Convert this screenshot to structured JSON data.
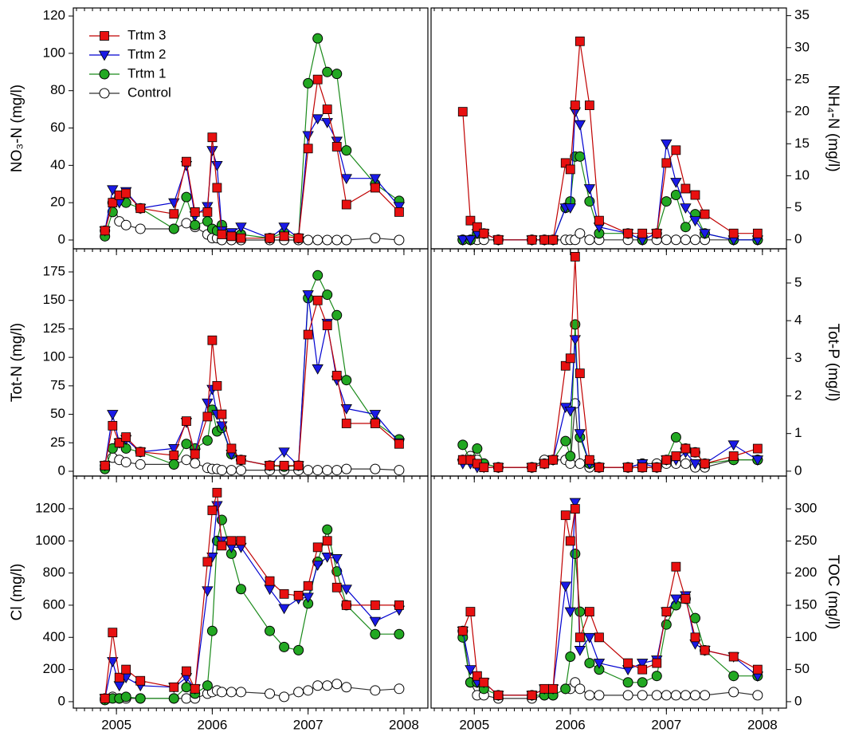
{
  "chart_data": [
    {
      "type": "line",
      "ylabel": "NO₃-N (mg/l)",
      "y_axis_side": "left",
      "legend": "upper left",
      "xlim": [
        2004.55,
        2008.25
      ],
      "xticks": [
        2005,
        2006,
        2007,
        2008
      ],
      "show_xtick_labels": false,
      "ylim": [
        -4.7,
        124.3
      ],
      "yticks": [
        0,
        20,
        40,
        60,
        80,
        100,
        120
      ],
      "x": [
        2004.88,
        2004.96,
        2005.03,
        2005.1,
        2005.25,
        2005.6,
        2005.73,
        2005.82,
        2005.95,
        2006.0,
        2006.05,
        2006.1,
        2006.2,
        2006.3,
        2006.6,
        2006.75,
        2006.9,
        2007.0,
        2007.1,
        2007.2,
        2007.3,
        2007.4,
        2007.7,
        2007.95
      ],
      "series": [
        {
          "name": "Trtm 3",
          "color": "#c00000",
          "marker": "square",
          "marker_fill": "#e81010",
          "values": [
            5,
            20,
            24,
            25,
            17,
            14,
            42,
            15,
            15,
            55,
            28,
            3,
            2,
            1,
            1,
            2,
            1,
            49,
            86,
            70,
            50,
            19,
            28,
            15
          ]
        },
        {
          "name": "Trtm 2",
          "color": "#0000d0",
          "marker": "triangle-down",
          "marker_fill": "#1a1ae6",
          "values": [
            5,
            27,
            20,
            26,
            17,
            20,
            40,
            13,
            18,
            48,
            40,
            5,
            4,
            7,
            1,
            7,
            1,
            56,
            65,
            63,
            53,
            33,
            33,
            18
          ]
        },
        {
          "name": "Trtm 1",
          "color": "#1a8a1a",
          "marker": "circle",
          "marker_fill": "#22a822",
          "values": [
            2,
            15,
            23,
            20,
            17,
            6,
            23,
            8,
            10,
            6,
            5,
            8,
            3,
            3,
            1,
            4,
            1,
            84,
            108,
            90,
            89,
            48,
            30,
            21
          ]
        },
        {
          "name": "Control",
          "color": "#333333",
          "marker": "circle",
          "marker_fill": "#ffffff",
          "values": [
            5,
            20,
            10,
            8,
            6,
            6,
            9,
            7,
            3,
            1,
            1,
            0,
            0,
            0,
            0,
            0,
            0,
            0,
            0,
            0,
            0,
            0,
            1,
            0
          ]
        }
      ]
    },
    {
      "type": "line",
      "ylabel": "NH₄-N (mg/l)",
      "y_axis_side": "right",
      "xlim": [
        2004.55,
        2008.25
      ],
      "xticks": [
        2005,
        2006,
        2007,
        2008
      ],
      "show_xtick_labels": false,
      "ylim": [
        -1.4,
        36.2
      ],
      "yticks": [
        0,
        5,
        10,
        15,
        20,
        25,
        30,
        35
      ],
      "x": [
        2004.88,
        2004.96,
        2005.03,
        2005.1,
        2005.25,
        2005.6,
        2005.73,
        2005.82,
        2005.95,
        2006.0,
        2006.05,
        2006.1,
        2006.2,
        2006.3,
        2006.6,
        2006.75,
        2006.9,
        2007.0,
        2007.1,
        2007.2,
        2007.3,
        2007.4,
        2007.7,
        2007.95
      ],
      "series": [
        {
          "color": "#c00000",
          "marker": "square",
          "marker_fill": "#e81010",
          "values": [
            20,
            3,
            2,
            1,
            0,
            0,
            0,
            0,
            12,
            11,
            21,
            31,
            21,
            3,
            1,
            1,
            1,
            12,
            14,
            8,
            7,
            4,
            1,
            1
          ]
        },
        {
          "color": "#0000d0",
          "marker": "triangle-down",
          "marker_fill": "#1a1ae6",
          "values": [
            0,
            0,
            1,
            1,
            0,
            0,
            0,
            0,
            5,
            5,
            20,
            18,
            8,
            2,
            1,
            0,
            1,
            15,
            9,
            5,
            3,
            1,
            0,
            0
          ]
        },
        {
          "color": "#1a8a1a",
          "marker": "circle",
          "marker_fill": "#22a822",
          "values": [
            0,
            0,
            1,
            1,
            0,
            0,
            0,
            0,
            5,
            6,
            13,
            13,
            6,
            1,
            1,
            0,
            1,
            6,
            7,
            2,
            4,
            1,
            0,
            0
          ]
        },
        {
          "color": "#333333",
          "marker": "circle",
          "marker_fill": "#ffffff",
          "values": [
            0,
            0,
            0,
            0,
            0,
            0,
            0,
            0,
            0,
            0,
            0,
            1,
            0,
            0,
            0,
            0,
            0,
            0,
            0,
            0,
            0,
            0,
            0,
            0
          ]
        }
      ]
    },
    {
      "type": "line",
      "ylabel": "Tot-N (mg/l)",
      "y_axis_side": "left",
      "xlim": [
        2004.55,
        2008.25
      ],
      "xticks": [
        2005,
        2006,
        2007,
        2008
      ],
      "show_xtick_labels": false,
      "ylim": [
        -4.2,
        195.3
      ],
      "yticks": [
        0,
        25,
        50,
        75,
        100,
        125,
        150,
        175
      ],
      "x": [
        2004.88,
        2004.96,
        2005.03,
        2005.1,
        2005.25,
        2005.6,
        2005.73,
        2005.82,
        2005.95,
        2006.0,
        2006.05,
        2006.1,
        2006.2,
        2006.3,
        2006.6,
        2006.75,
        2006.9,
        2007.0,
        2007.1,
        2007.2,
        2007.3,
        2007.4,
        2007.7,
        2007.95
      ],
      "series": [
        {
          "color": "#c00000",
          "marker": "square",
          "marker_fill": "#e81010",
          "values": [
            5,
            40,
            25,
            30,
            17,
            14,
            44,
            15,
            48,
            115,
            75,
            50,
            20,
            10,
            5,
            5,
            5,
            120,
            150,
            128,
            84,
            42,
            42,
            24
          ]
        },
        {
          "color": "#0000d0",
          "marker": "triangle-down",
          "marker_fill": "#1a1ae6",
          "values": [
            5,
            50,
            25,
            28,
            17,
            20,
            43,
            16,
            60,
            72,
            50,
            40,
            15,
            10,
            5,
            17,
            5,
            155,
            90,
            130,
            80,
            55,
            50,
            25
          ]
        },
        {
          "color": "#1a8a1a",
          "marker": "circle",
          "marker_fill": "#22a822",
          "values": [
            2,
            20,
            25,
            20,
            17,
            6,
            24,
            20,
            27,
            54,
            35,
            38,
            15,
            10,
            5,
            4,
            5,
            152,
            172,
            155,
            137,
            80,
            43,
            28
          ]
        },
        {
          "color": "#333333",
          "marker": "circle",
          "marker_fill": "#ffffff",
          "values": [
            5,
            12,
            10,
            8,
            6,
            6,
            10,
            7,
            3,
            2,
            2,
            1,
            1,
            1,
            1,
            1,
            1,
            1,
            1,
            1,
            1,
            2,
            2,
            1
          ]
        }
      ]
    },
    {
      "type": "line",
      "ylabel": "Tot-P (mg/l)",
      "y_axis_side": "right",
      "xlim": [
        2004.55,
        2008.25
      ],
      "xticks": [
        2005,
        2006,
        2007,
        2008
      ],
      "show_xtick_labels": false,
      "ylim": [
        -0.13,
        5.91
      ],
      "yticks": [
        0,
        1,
        2,
        3,
        4,
        5
      ],
      "x": [
        2004.88,
        2004.96,
        2005.03,
        2005.1,
        2005.25,
        2005.6,
        2005.73,
        2005.82,
        2005.95,
        2006.0,
        2006.05,
        2006.1,
        2006.2,
        2006.3,
        2006.6,
        2006.75,
        2006.9,
        2007.0,
        2007.1,
        2007.2,
        2007.3,
        2007.4,
        2007.7,
        2007.95
      ],
      "series": [
        {
          "color": "#c00000",
          "marker": "square",
          "marker_fill": "#e81010",
          "values": [
            0.3,
            0.3,
            0.2,
            0.1,
            0.1,
            0.1,
            0.2,
            0.3,
            2.8,
            3.0,
            5.7,
            2.6,
            0.3,
            0.1,
            0.1,
            0.1,
            0.1,
            0.3,
            0.4,
            0.6,
            0.5,
            0.2,
            0.4,
            0.6
          ]
        },
        {
          "color": "#0000d0",
          "marker": "triangle-down",
          "marker_fill": "#1a1ae6",
          "values": [
            0.2,
            0.2,
            0.1,
            0.1,
            0.1,
            0.1,
            0.2,
            0.3,
            1.7,
            1.6,
            3.5,
            1.0,
            0.2,
            0.1,
            0.1,
            0.2,
            0.1,
            0.3,
            0.3,
            0.5,
            0.2,
            0.2,
            0.7,
            0.3
          ]
        },
        {
          "color": "#1a8a1a",
          "marker": "circle",
          "marker_fill": "#22a822",
          "values": [
            0.7,
            0.3,
            0.6,
            0.2,
            0.1,
            0.1,
            0.2,
            0.3,
            0.8,
            0.4,
            3.9,
            0.9,
            0.2,
            0.1,
            0.1,
            0.1,
            0.1,
            0.3,
            0.9,
            0.6,
            0.5,
            0.2,
            0.3,
            0.3
          ]
        },
        {
          "color": "#333333",
          "marker": "circle",
          "marker_fill": "#ffffff",
          "values": [
            0.3,
            0.4,
            0.3,
            0.2,
            0.1,
            0.1,
            0.3,
            0.3,
            0.3,
            0.2,
            1.8,
            0.2,
            0.1,
            0.1,
            0.1,
            0.2,
            0.2,
            0.2,
            0.2,
            0.2,
            0.1,
            0.1,
            0.3,
            0.3
          ]
        }
      ]
    },
    {
      "type": "line",
      "ylabel": "Cl (mg/l)",
      "y_axis_side": "left",
      "xlim": [
        2004.55,
        2008.25
      ],
      "xticks": [
        2005,
        2006,
        2007,
        2008
      ],
      "show_xtick_labels": true,
      "ylim": [
        -40,
        1403
      ],
      "yticks": [
        0,
        200,
        400,
        600,
        800,
        1000,
        1200
      ],
      "x": [
        2004.88,
        2004.96,
        2005.03,
        2005.1,
        2005.25,
        2005.6,
        2005.73,
        2005.82,
        2005.95,
        2006.0,
        2006.05,
        2006.1,
        2006.2,
        2006.3,
        2006.6,
        2006.75,
        2006.9,
        2007.0,
        2007.1,
        2007.2,
        2007.3,
        2007.4,
        2007.7,
        2007.95
      ],
      "series": [
        {
          "color": "#c00000",
          "marker": "square",
          "marker_fill": "#e81010",
          "values": [
            20,
            430,
            150,
            200,
            130,
            90,
            190,
            80,
            870,
            1190,
            1300,
            970,
            1000,
            1000,
            750,
            670,
            660,
            720,
            960,
            1000,
            710,
            600,
            600,
            600
          ]
        },
        {
          "color": "#0000d0",
          "marker": "triangle-down",
          "marker_fill": "#1a1ae6",
          "values": [
            20,
            250,
            100,
            150,
            100,
            90,
            150,
            80,
            690,
            900,
            1220,
            1000,
            960,
            960,
            700,
            580,
            640,
            650,
            850,
            900,
            890,
            700,
            500,
            570
          ]
        },
        {
          "color": "#1a8a1a",
          "marker": "circle",
          "marker_fill": "#22a822",
          "values": [
            10,
            20,
            20,
            30,
            20,
            20,
            90,
            50,
            100,
            440,
            1000,
            1130,
            920,
            700,
            440,
            340,
            320,
            610,
            870,
            1070,
            810,
            600,
            420,
            420
          ]
        },
        {
          "color": "#333333",
          "marker": "circle",
          "marker_fill": "#ffffff",
          "values": [
            20,
            30,
            20,
            20,
            20,
            20,
            20,
            20,
            50,
            60,
            70,
            60,
            60,
            60,
            50,
            30,
            60,
            70,
            100,
            100,
            110,
            90,
            70,
            80
          ]
        }
      ]
    },
    {
      "type": "line",
      "ylabel": "TOC (mg/l)",
      "y_axis_side": "right",
      "xlim": [
        2004.55,
        2008.25
      ],
      "xticks": [
        2005,
        2006,
        2007,
        2008
      ],
      "show_xtick_labels": true,
      "ylim": [
        -10,
        351
      ],
      "yticks": [
        0,
        50,
        100,
        150,
        200,
        250,
        300
      ],
      "x": [
        2004.88,
        2004.96,
        2005.03,
        2005.1,
        2005.25,
        2005.6,
        2005.73,
        2005.82,
        2005.95,
        2006.0,
        2006.05,
        2006.1,
        2006.2,
        2006.3,
        2006.6,
        2006.75,
        2006.9,
        2007.0,
        2007.1,
        2007.2,
        2007.3,
        2007.4,
        2007.7,
        2007.95
      ],
      "series": [
        {
          "color": "#c00000",
          "marker": "square",
          "marker_fill": "#e81010",
          "values": [
            110,
            140,
            40,
            30,
            10,
            10,
            20,
            20,
            290,
            250,
            300,
            100,
            140,
            100,
            60,
            50,
            60,
            140,
            210,
            160,
            100,
            80,
            70,
            50
          ]
        },
        {
          "color": "#0000d0",
          "marker": "triangle-down",
          "marker_fill": "#1a1ae6",
          "values": [
            110,
            50,
            30,
            30,
            10,
            10,
            20,
            20,
            180,
            140,
            310,
            80,
            100,
            60,
            50,
            60,
            65,
            140,
            160,
            165,
            90,
            80,
            70,
            40
          ]
        },
        {
          "color": "#1a8a1a",
          "marker": "circle",
          "marker_fill": "#22a822",
          "values": [
            100,
            30,
            30,
            20,
            10,
            10,
            10,
            10,
            20,
            70,
            230,
            140,
            60,
            50,
            30,
            30,
            40,
            120,
            150,
            160,
            130,
            80,
            40,
            40
          ]
        },
        {
          "color": "#333333",
          "marker": "circle",
          "marker_fill": "#ffffff",
          "values": [
            110,
            30,
            10,
            10,
            5,
            5,
            10,
            10,
            20,
            20,
            30,
            20,
            10,
            10,
            10,
            10,
            10,
            10,
            10,
            10,
            10,
            10,
            15,
            10
          ]
        }
      ]
    }
  ]
}
